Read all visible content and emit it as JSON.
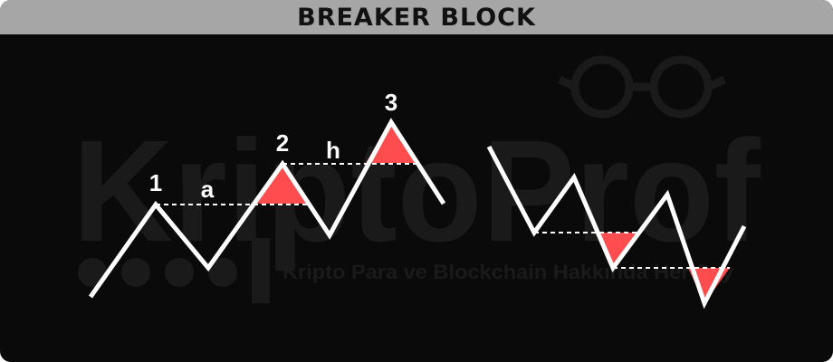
{
  "title": "BREAKER BLOCK",
  "watermark": {
    "brand": "KriptoProf",
    "tagline": "Kripto Para ve Blockchain Hakkında Her Şey"
  },
  "labels": {
    "peak1": "1",
    "peak2": "2",
    "peak3": "3",
    "gap_a": "a",
    "gap_h": "h"
  },
  "colors": {
    "background": "#0a0a0a",
    "title_bar": "#a6a6a6",
    "line": "#ffffff",
    "breaker_zone": "#ff4d4f"
  }
}
